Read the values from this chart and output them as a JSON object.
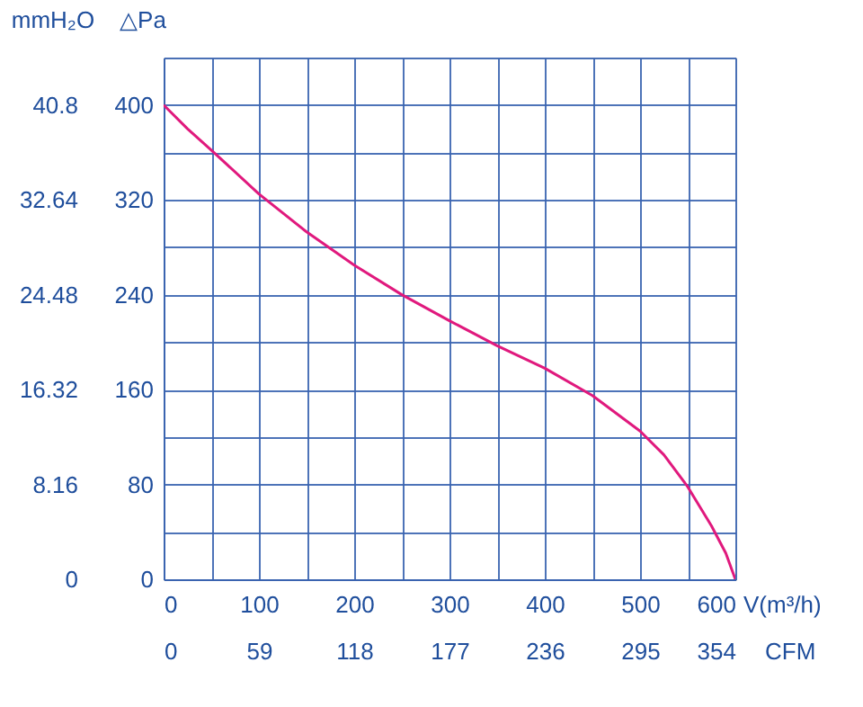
{
  "chart_data": {
    "type": "line",
    "xlabel": "V(m³/h)",
    "ylabel": "△Pa",
    "y2label": "mmH₂O",
    "x2label": "CFM",
    "x": [
      0,
      25,
      50,
      100,
      150,
      200,
      250,
      300,
      350,
      400,
      450,
      500,
      525,
      550,
      575,
      590,
      600
    ],
    "series": [
      {
        "color": "#e0197d",
        "values": [
          400,
          380,
          362,
          325,
          293,
          265,
          240,
          218,
          197,
          178,
          155,
          125,
          105,
          78,
          45,
          22,
          0
        ]
      }
    ],
    "xlim": [
      0,
      600
    ],
    "xticks": [
      0,
      {
        "value": 50,
        "label": null
      },
      100,
      {
        "value": 150,
        "label": null
      },
      200,
      {
        "value": 250,
        "label": null
      },
      300,
      {
        "value": 350,
        "label": null
      },
      400,
      {
        "value": 450,
        "label": null
      },
      500,
      {
        "value": 550,
        "label": null
      },
      600
    ],
    "ylim": [
      0,
      440
    ],
    "yticks": [
      0,
      {
        "value": 40,
        "label": null
      },
      80,
      {
        "value": 120,
        "label": null
      },
      160,
      {
        "value": 200,
        "label": null
      },
      240,
      {
        "value": 280,
        "label": null
      },
      320,
      {
        "value": 360,
        "label": null
      },
      400,
      {
        "value": 440,
        "label": null
      }
    ],
    "y2lim": [
      0,
      44.88
    ],
    "y2ticks": [
      0,
      8.16,
      16.32,
      24.48,
      32.64,
      40.8
    ],
    "x2lim": [
      0,
      354
    ],
    "x2ticks": [
      0,
      59,
      118,
      177,
      236,
      295,
      354
    ],
    "grid": true,
    "marker": "none",
    "line_style": "solid"
  }
}
